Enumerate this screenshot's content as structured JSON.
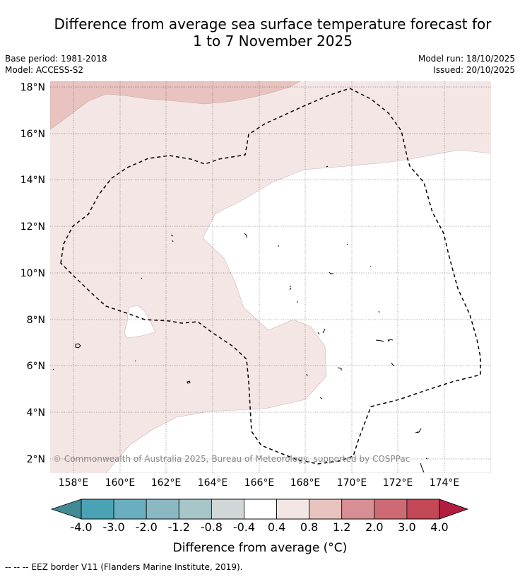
{
  "title_line1": "Difference from average sea surface temperature forecast for",
  "title_line2": "1 to 7 November 2025",
  "base_period": "Base period: 1981-2018",
  "model": "Model: ACCESS-S2",
  "model_run": "Model run: 18/10/2025",
  "issued": "Issued: 20/10/2025",
  "lat_labels": [
    "18°N",
    "16°N",
    "14°N",
    "12°N",
    "10°N",
    "8°N",
    "6°N",
    "4°N",
    "2°N"
  ],
  "lon_labels": [
    "158°E",
    "160°E",
    "162°E",
    "164°E",
    "166°E",
    "168°E",
    "170°E",
    "172°E",
    "174°E"
  ],
  "copyright": "© Commonwealth of Australia 2025, Bureau of Meteorology, supported by COSPPac",
  "colorbar": {
    "ticks": [
      "-4.0",
      "-3.0",
      "-2.0",
      "-1.2",
      "-0.8",
      "-0.4",
      "0.4",
      "0.8",
      "1.2",
      "2.0",
      "3.0",
      "4.0"
    ],
    "colors": [
      "#4aa3b5",
      "#6aafbf",
      "#8ab9c4",
      "#a7c6ca",
      "#d1d6d8",
      "#ffffff",
      "#f4e6e5",
      "#e8c3bf",
      "#d88e95",
      "#cd6a74",
      "#c24757"
    ],
    "low_color": "#428a96",
    "high_color": "#b21c3f",
    "label": "Difference from average (°C)"
  },
  "legend_note": "--  --  -- EEZ border V11 (Flanders Marine Institute, 2019)."
}
